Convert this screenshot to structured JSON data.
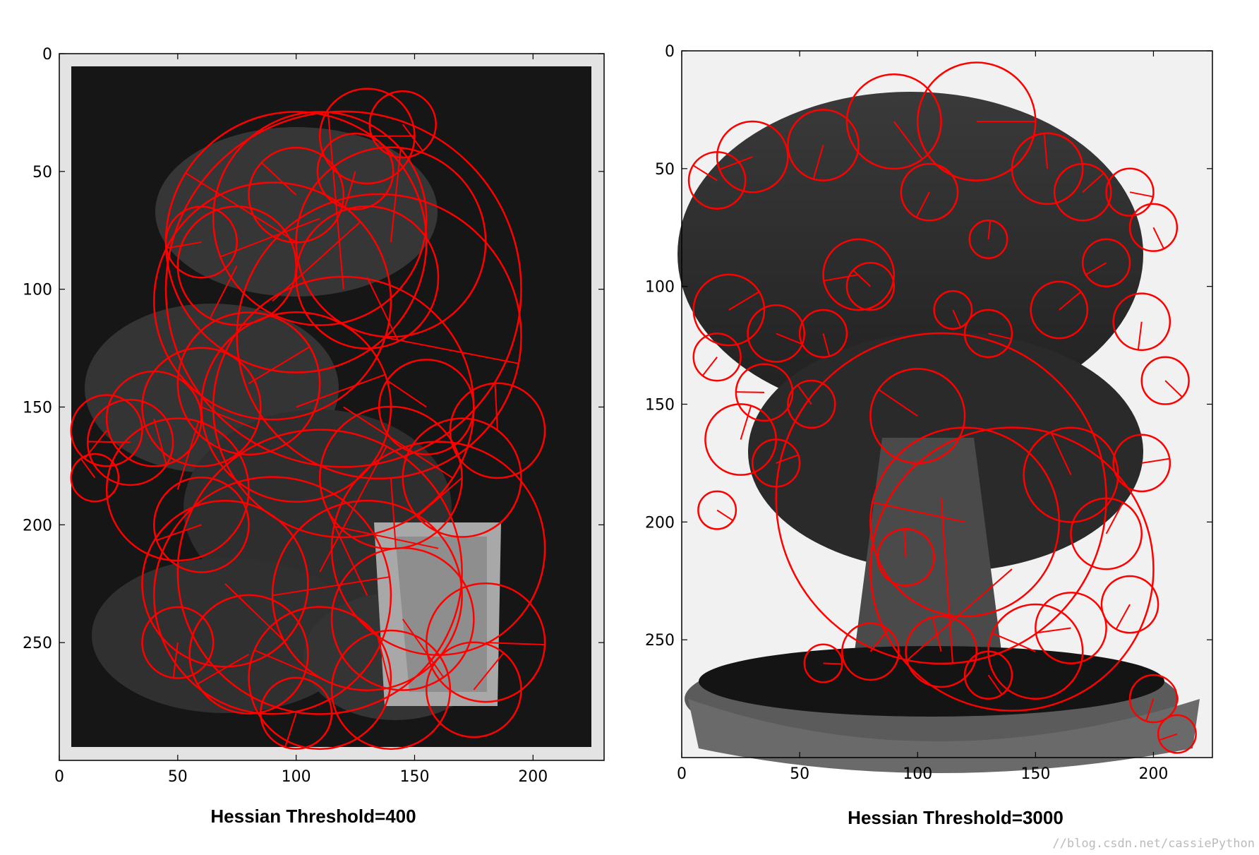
{
  "chart_data": [
    {
      "type": "scatter",
      "title": "Hessian Threshold=400",
      "xlabel": "",
      "ylabel": "",
      "xlim": [
        0,
        230
      ],
      "ylim": [
        300,
        0
      ],
      "x_ticks": [
        0,
        50,
        100,
        150,
        200
      ],
      "y_ticks": [
        0,
        50,
        100,
        150,
        200,
        250
      ],
      "grid": false,
      "marker": "circle",
      "marker_color": "#ff0000",
      "background_image": "grayscale bonsai photo on dark backdrop",
      "keypoints": [
        [
          130,
          35,
          20
        ],
        [
          145,
          30,
          14
        ],
        [
          125,
          50,
          16
        ],
        [
          110,
          70,
          45
        ],
        [
          100,
          80,
          55
        ],
        [
          120,
          100,
          75
        ],
        [
          90,
          105,
          50
        ],
        [
          135,
          120,
          60
        ],
        [
          130,
          95,
          30
        ],
        [
          75,
          90,
          25
        ],
        [
          60,
          80,
          15
        ],
        [
          100,
          60,
          20
        ],
        [
          140,
          80,
          40
        ],
        [
          80,
          140,
          30
        ],
        [
          60,
          150,
          25
        ],
        [
          40,
          155,
          20
        ],
        [
          20,
          160,
          15
        ],
        [
          30,
          165,
          18
        ],
        [
          15,
          180,
          10
        ],
        [
          50,
          185,
          30
        ],
        [
          100,
          150,
          40
        ],
        [
          120,
          150,
          55
        ],
        [
          140,
          180,
          30
        ],
        [
          170,
          180,
          25
        ],
        [
          160,
          210,
          45
        ],
        [
          130,
          230,
          40
        ],
        [
          110,
          220,
          60
        ],
        [
          90,
          230,
          50
        ],
        [
          70,
          225,
          35
        ],
        [
          50,
          250,
          15
        ],
        [
          80,
          255,
          25
        ],
        [
          110,
          265,
          30
        ],
        [
          140,
          270,
          25
        ],
        [
          175,
          270,
          20
        ],
        [
          180,
          250,
          25
        ],
        [
          145,
          240,
          30
        ],
        [
          100,
          280,
          15
        ],
        [
          60,
          200,
          20
        ],
        [
          155,
          150,
          20
        ],
        [
          185,
          160,
          20
        ]
      ]
    },
    {
      "type": "scatter",
      "title": "Hessian Threshold=3000",
      "xlabel": "",
      "ylabel": "",
      "xlim": [
        0,
        225
      ],
      "ylim": [
        300,
        0
      ],
      "x_ticks": [
        0,
        50,
        100,
        150,
        200
      ],
      "y_ticks": [
        0,
        50,
        100,
        150,
        200,
        250
      ],
      "grid": false,
      "marker": "circle",
      "marker_color": "#ff0000",
      "background_image": "grayscale bonsai photo on light backdrop",
      "keypoints": [
        [
          125,
          30,
          25
        ],
        [
          90,
          30,
          20
        ],
        [
          60,
          40,
          15
        ],
        [
          30,
          45,
          15
        ],
        [
          15,
          55,
          12
        ],
        [
          155,
          50,
          15
        ],
        [
          170,
          60,
          12
        ],
        [
          190,
          60,
          10
        ],
        [
          200,
          75,
          10
        ],
        [
          105,
          60,
          12
        ],
        [
          75,
          95,
          15
        ],
        [
          80,
          100,
          10
        ],
        [
          130,
          80,
          8
        ],
        [
          20,
          110,
          15
        ],
        [
          40,
          120,
          12
        ],
        [
          60,
          120,
          10
        ],
        [
          15,
          130,
          10
        ],
        [
          35,
          145,
          12
        ],
        [
          55,
          150,
          10
        ],
        [
          25,
          165,
          15
        ],
        [
          40,
          175,
          10
        ],
        [
          15,
          195,
          8
        ],
        [
          110,
          190,
          70
        ],
        [
          140,
          220,
          60
        ],
        [
          120,
          200,
          40
        ],
        [
          165,
          180,
          20
        ],
        [
          180,
          205,
          15
        ],
        [
          195,
          175,
          12
        ],
        [
          205,
          140,
          10
        ],
        [
          195,
          115,
          12
        ],
        [
          180,
          90,
          10
        ],
        [
          150,
          255,
          20
        ],
        [
          110,
          255,
          15
        ],
        [
          80,
          255,
          12
        ],
        [
          60,
          260,
          8
        ],
        [
          130,
          265,
          10
        ],
        [
          200,
          275,
          10
        ],
        [
          210,
          290,
          8
        ],
        [
          100,
          155,
          20
        ],
        [
          95,
          215,
          12
        ],
        [
          160,
          110,
          12
        ],
        [
          130,
          120,
          10
        ],
        [
          115,
          110,
          8
        ],
        [
          190,
          235,
          12
        ],
        [
          165,
          245,
          15
        ]
      ]
    }
  ],
  "watermark": "//blog.csdn.net/cassiePython"
}
